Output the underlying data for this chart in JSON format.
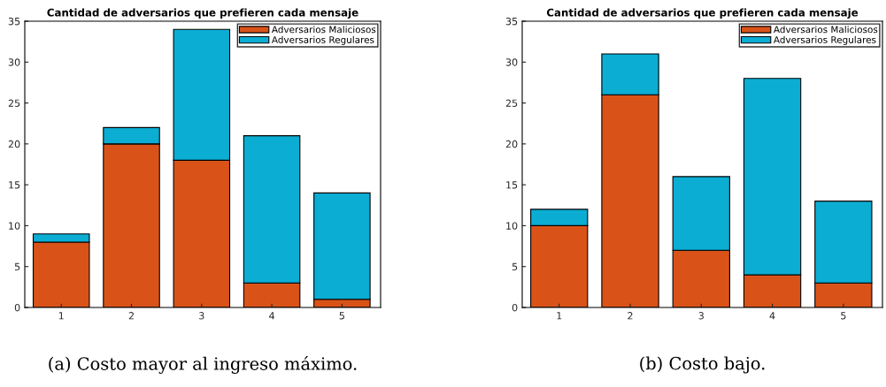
{
  "chart_data": [
    {
      "type": "bar",
      "stacked": true,
      "title": "Cantidad de adversarios que prefieren cada mensaje",
      "categories": [
        "1",
        "2",
        "3",
        "4",
        "5"
      ],
      "series": [
        {
          "name": "Adversarios Maliciosos",
          "color": "#d95319",
          "values": [
            8,
            20,
            18,
            3,
            1
          ]
        },
        {
          "name": "Adversarios Regulares",
          "color": "#0badd3",
          "values": [
            1,
            2,
            16,
            18,
            13
          ]
        }
      ],
      "ylim": [
        0,
        35
      ],
      "yticks": [
        0,
        5,
        10,
        15,
        20,
        25,
        30,
        35
      ],
      "legend": "top right",
      "grid": false,
      "annotations": [
        "(a) Costo mayor al ingreso máximo."
      ]
    },
    {
      "type": "bar",
      "stacked": true,
      "title": "Cantidad de adversarios que prefieren cada mensaje",
      "categories": [
        "1",
        "2",
        "3",
        "4",
        "5"
      ],
      "series": [
        {
          "name": "Adversarios Maliciosos",
          "color": "#d95319",
          "values": [
            10,
            26,
            7,
            4,
            3
          ]
        },
        {
          "name": "Adversarios Regulares",
          "color": "#0badd3",
          "values": [
            2,
            5,
            9,
            24,
            10
          ]
        }
      ],
      "ylim": [
        0,
        35
      ],
      "yticks": [
        0,
        5,
        10,
        15,
        20,
        25,
        30,
        35
      ],
      "legend": "top right",
      "grid": false,
      "annotations": [
        "(b) Costo bajo."
      ]
    }
  ]
}
